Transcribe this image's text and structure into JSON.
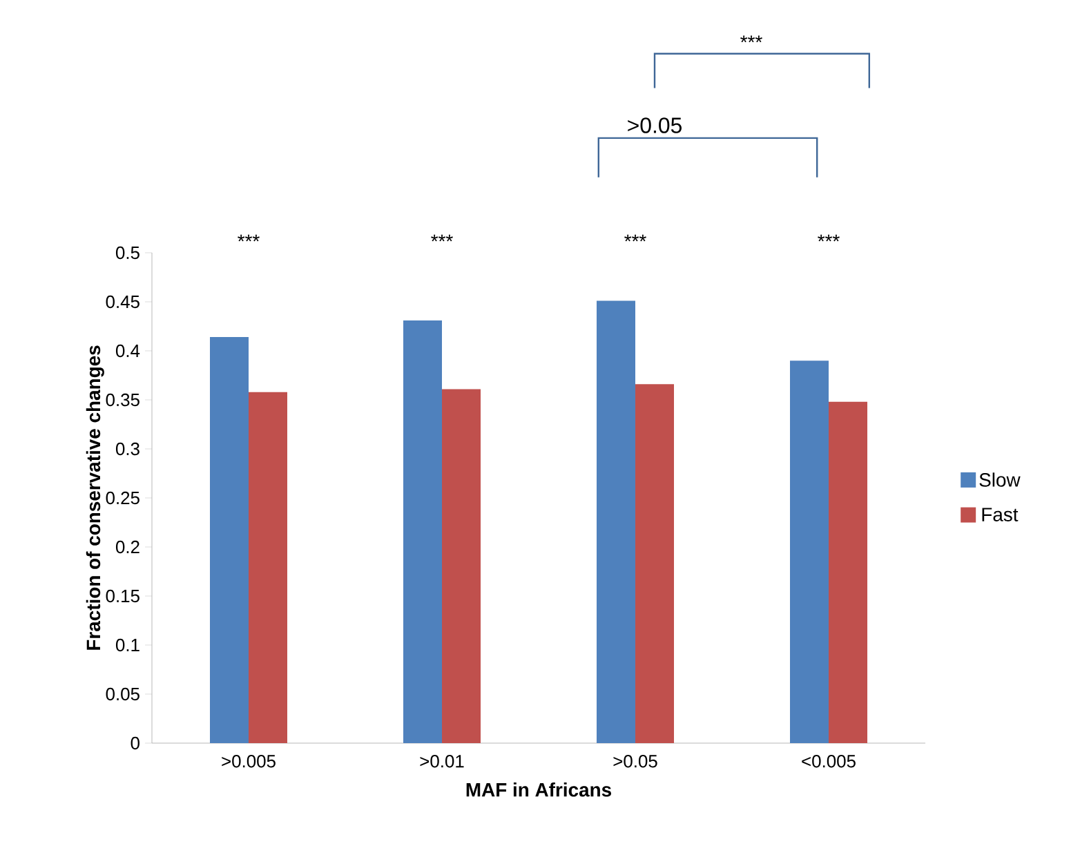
{
  "chart_data": {
    "type": "bar",
    "xlabel": "MAF in Africans",
    "ylabel": "Fraction of conservative changes",
    "categories": [
      ">0.005",
      ">0.01",
      ">0.05",
      "<0.005"
    ],
    "series": [
      {
        "name": "Slow",
        "color": "#4f81bd",
        "values": [
          0.414,
          0.431,
          0.451,
          0.39
        ]
      },
      {
        "name": "Fast",
        "color": "#c0504d",
        "values": [
          0.358,
          0.361,
          0.366,
          0.348
        ]
      }
    ],
    "ylim": [
      0,
      0.5
    ],
    "yticks": [
      0,
      0.05,
      0.1,
      0.15,
      0.2,
      0.25,
      0.3,
      0.35,
      0.4,
      0.45,
      0.5
    ],
    "grid": false,
    "legend": "right",
    "annotations": [
      "***",
      "***",
      "***",
      "***",
      ">0.05",
      "***"
    ]
  }
}
